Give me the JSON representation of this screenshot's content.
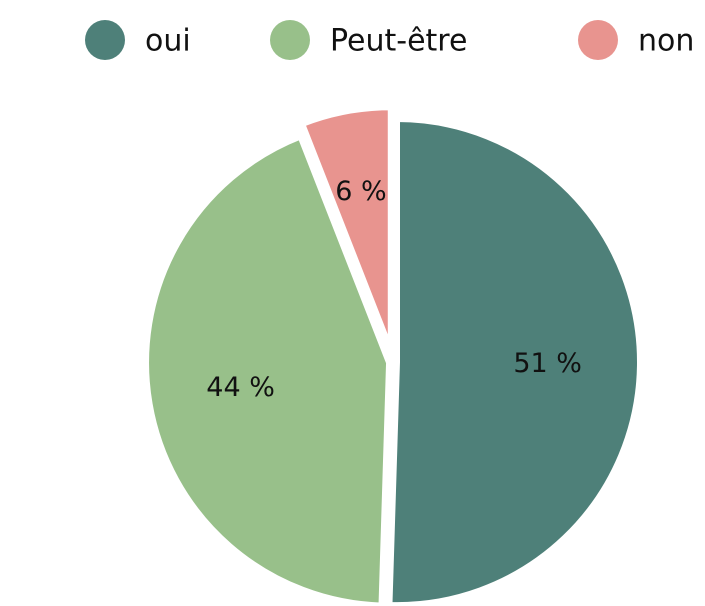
{
  "chart_data": {
    "type": "pie",
    "categories": [
      "oui",
      "Peut-être",
      "non"
    ],
    "values": [
      51,
      44,
      6
    ],
    "value_labels": [
      "51 %",
      "44 %",
      "6 %"
    ],
    "colors": [
      "#4e8079",
      "#98c08a",
      "#e8948f"
    ],
    "legend": "top"
  }
}
